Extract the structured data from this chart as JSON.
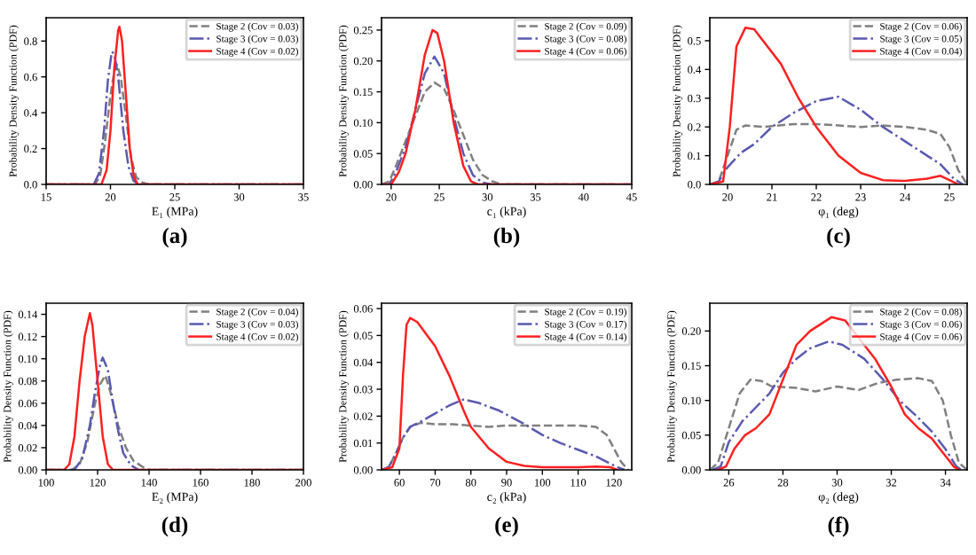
{
  "chart_data": [
    {
      "type": "line",
      "xlabel": "E₁ (MPa)",
      "ylabel": "Probability Density Function (PDF)",
      "annotations": [
        "(a)"
      ],
      "xlim": [
        15,
        35
      ],
      "xticks": [
        15,
        20,
        25,
        30,
        35
      ],
      "ylim": [
        0,
        0.93
      ],
      "yticks": [
        {
          "value": 0,
          "label": "0.0"
        },
        {
          "value": 0.2,
          "label": "0.2"
        },
        {
          "value": 0.4,
          "label": "0.4"
        },
        {
          "value": 0.6,
          "label": "0.6"
        },
        {
          "value": 0.8,
          "label": "0.8"
        }
      ],
      "legend": "top right",
      "grid": false,
      "series": [
        {
          "name": "Stage 2 (Cov = 0.03)",
          "color": "#808080",
          "line_style": "dashed",
          "x": [
            15,
            18.8,
            19.2,
            19.6,
            20.0,
            20.3,
            20.5,
            20.8,
            21.2,
            21.6,
            22.0,
            22.5,
            23,
            35
          ],
          "values": [
            0,
            0,
            0.05,
            0.25,
            0.5,
            0.63,
            0.67,
            0.6,
            0.38,
            0.15,
            0.04,
            0.01,
            0,
            0
          ]
        },
        {
          "name": "Stage 3 (Cov = 0.03)",
          "color": "#5a5ab0",
          "line_style": "dashdot",
          "x": [
            15,
            18.7,
            19.1,
            19.5,
            19.8,
            20.1,
            20.3,
            20.6,
            21.0,
            21.4,
            21.8,
            22.2,
            35
          ],
          "values": [
            0,
            0,
            0.06,
            0.3,
            0.58,
            0.74,
            0.73,
            0.6,
            0.3,
            0.1,
            0.02,
            0,
            0
          ]
        },
        {
          "name": "Stage 4 (Cov = 0.02)",
          "color": "#ff2020",
          "line_style": "solid",
          "x": [
            15,
            19.3,
            19.7,
            20.0,
            20.3,
            20.6,
            20.7,
            20.9,
            21.2,
            21.5,
            21.8,
            22.1,
            35
          ],
          "values": [
            0,
            0,
            0.08,
            0.3,
            0.65,
            0.86,
            0.88,
            0.8,
            0.5,
            0.2,
            0.05,
            0,
            0
          ]
        }
      ]
    },
    {
      "type": "line",
      "xlabel": "c₁ (kPa)",
      "ylabel": "Probability Density Function (PDF)",
      "annotations": [
        "(b)"
      ],
      "xlim": [
        19,
        45
      ],
      "xticks": [
        20,
        25,
        30,
        35,
        40,
        45
      ],
      "ylim": [
        0,
        0.27
      ],
      "yticks": [
        {
          "value": 0,
          "label": "0.00"
        },
        {
          "value": 0.05,
          "label": "0.05"
        },
        {
          "value": 0.1,
          "label": "0.10"
        },
        {
          "value": 0.15,
          "label": "0.15"
        },
        {
          "value": 0.2,
          "label": "0.20"
        },
        {
          "value": 0.25,
          "label": "0.25"
        }
      ],
      "legend": "top right",
      "grid": false,
      "series": [
        {
          "name": "Stage 2 (Cov = 0.09)",
          "color": "#808080",
          "line_style": "dashed",
          "x": [
            19,
            19.8,
            20.5,
            21.5,
            22.5,
            23.5,
            24.5,
            25.5,
            26.5,
            27.5,
            28.5,
            29.5,
            30.5,
            31.5,
            45
          ],
          "values": [
            0,
            0.005,
            0.03,
            0.07,
            0.11,
            0.15,
            0.165,
            0.155,
            0.12,
            0.08,
            0.04,
            0.015,
            0.005,
            0,
            0
          ]
        },
        {
          "name": "Stage 3 (Cov = 0.08)",
          "color": "#5a5ab0",
          "line_style": "dashdot",
          "x": [
            19,
            19.8,
            20.5,
            21.5,
            22.5,
            23.5,
            24.5,
            25.5,
            26.5,
            27.5,
            28.5,
            29.5,
            30.5,
            45
          ],
          "values": [
            0,
            0,
            0.02,
            0.06,
            0.12,
            0.18,
            0.207,
            0.18,
            0.11,
            0.05,
            0.015,
            0.003,
            0,
            0
          ]
        },
        {
          "name": "Stage 4 (Cov = 0.06)",
          "color": "#ff2020",
          "line_style": "solid",
          "x": [
            19,
            20,
            20.8,
            21.5,
            22.5,
            23.5,
            24.3,
            24.8,
            25.5,
            26.5,
            27.5,
            28.3,
            29,
            45
          ],
          "values": [
            0,
            0,
            0.02,
            0.05,
            0.12,
            0.21,
            0.25,
            0.245,
            0.2,
            0.1,
            0.03,
            0.005,
            0,
            0
          ]
        }
      ]
    },
    {
      "type": "line",
      "xlabel": "φ₁ (deg)",
      "ylabel": "Probability Density Function (PDF)",
      "annotations": [
        "(c)"
      ],
      "xlim": [
        19.6,
        25.4
      ],
      "xticks": [
        20,
        21,
        22,
        23,
        24,
        25
      ],
      "ylim": [
        0,
        0.58
      ],
      "yticks": [
        {
          "value": 0,
          "label": "0.0"
        },
        {
          "value": 0.1,
          "label": "0.1"
        },
        {
          "value": 0.2,
          "label": "0.2"
        },
        {
          "value": 0.3,
          "label": "0.3"
        },
        {
          "value": 0.4,
          "label": "0.4"
        },
        {
          "value": 0.5,
          "label": "0.5"
        }
      ],
      "legend": "top right",
      "grid": false,
      "series": [
        {
          "name": "Stage 2 (Cov = 0.06)",
          "color": "#808080",
          "line_style": "dashed",
          "x": [
            19.6,
            19.8,
            20.0,
            20.2,
            20.4,
            20.8,
            21.5,
            22.0,
            22.5,
            23.0,
            23.5,
            24.0,
            24.5,
            24.8,
            25.0,
            25.2,
            25.4
          ],
          "values": [
            0,
            0.01,
            0.1,
            0.19,
            0.205,
            0.2,
            0.21,
            0.21,
            0.205,
            0.2,
            0.205,
            0.2,
            0.19,
            0.175,
            0.13,
            0.05,
            0
          ]
        },
        {
          "name": "Stage 3 (Cov = 0.05)",
          "color": "#5a5ab0",
          "line_style": "dashdot",
          "x": [
            19.6,
            19.8,
            20.0,
            20.3,
            20.6,
            21.0,
            21.5,
            22.0,
            22.5,
            23.0,
            23.5,
            24.0,
            24.5,
            24.8,
            25.1,
            25.3
          ],
          "values": [
            0,
            0.01,
            0.06,
            0.11,
            0.14,
            0.2,
            0.25,
            0.29,
            0.305,
            0.26,
            0.2,
            0.15,
            0.1,
            0.07,
            0.02,
            0
          ]
        },
        {
          "name": "Stage 4 (Cov = 0.04)",
          "color": "#ff2020",
          "line_style": "solid",
          "x": [
            19.6,
            19.9,
            20.05,
            20.2,
            20.4,
            20.6,
            20.8,
            21.2,
            21.6,
            22.0,
            22.5,
            23.0,
            23.5,
            24.0,
            24.5,
            24.8,
            25.0,
            25.2
          ],
          "values": [
            0,
            0.01,
            0.2,
            0.48,
            0.545,
            0.54,
            0.5,
            0.42,
            0.3,
            0.2,
            0.1,
            0.04,
            0.015,
            0.012,
            0.02,
            0.03,
            0.015,
            0
          ]
        }
      ]
    },
    {
      "type": "line",
      "xlabel": "E₂ (MPa)",
      "ylabel": "Probability Density Function (PDF)",
      "annotations": [
        "(d)"
      ],
      "xlim": [
        100,
        200
      ],
      "xticks": [
        100,
        120,
        140,
        160,
        180,
        200
      ],
      "ylim": [
        0,
        0.15
      ],
      "yticks": [
        {
          "value": 0,
          "label": "0.00"
        },
        {
          "value": 0.02,
          "label": "0.02"
        },
        {
          "value": 0.04,
          "label": "0.04"
        },
        {
          "value": 0.06,
          "label": "0.06"
        },
        {
          "value": 0.08,
          "label": "0.08"
        },
        {
          "value": 0.1,
          "label": "0.10"
        },
        {
          "value": 0.12,
          "label": "0.12"
        },
        {
          "value": 0.14,
          "label": "0.14"
        }
      ],
      "legend": "top right",
      "grid": false,
      "series": [
        {
          "name": "Stage 2 (Cov = 0.04)",
          "color": "#808080",
          "line_style": "dashed",
          "x": [
            100,
            110,
            113,
            116,
            119,
            121,
            123,
            125,
            128,
            131,
            134,
            138,
            140,
            200
          ],
          "values": [
            0,
            0,
            0.005,
            0.025,
            0.06,
            0.077,
            0.085,
            0.07,
            0.04,
            0.02,
            0.008,
            0.002,
            0,
            0
          ]
        },
        {
          "name": "Stage 3 (Cov = 0.03)",
          "color": "#5a5ab0",
          "line_style": "dashdot",
          "x": [
            100,
            111,
            114,
            117,
            119,
            121,
            122,
            124,
            126,
            128,
            130,
            133,
            136,
            200
          ],
          "values": [
            0,
            0,
            0.01,
            0.04,
            0.07,
            0.095,
            0.101,
            0.09,
            0.06,
            0.035,
            0.015,
            0.004,
            0,
            0
          ]
        },
        {
          "name": "Stage 4 (Cov = 0.02)",
          "color": "#ff2020",
          "line_style": "solid",
          "x": [
            100,
            107,
            109,
            111,
            113,
            115,
            117,
            118,
            120,
            122,
            124,
            126,
            200
          ],
          "values": [
            0,
            0,
            0.005,
            0.03,
            0.08,
            0.12,
            0.141,
            0.13,
            0.08,
            0.03,
            0.005,
            0,
            0
          ]
        }
      ]
    },
    {
      "type": "line",
      "xlabel": "c₂ (kPa)",
      "ylabel": "Probability Density Function (PDF)",
      "annotations": [
        "(e)"
      ],
      "xlim": [
        55,
        125
      ],
      "xticks": [
        60,
        70,
        80,
        90,
        100,
        110,
        120
      ],
      "ylim": [
        0,
        0.062
      ],
      "yticks": [
        {
          "value": 0,
          "label": "0.00"
        },
        {
          "value": 0.01,
          "label": "0.01"
        },
        {
          "value": 0.02,
          "label": "0.02"
        },
        {
          "value": 0.03,
          "label": "0.03"
        },
        {
          "value": 0.04,
          "label": "0.04"
        },
        {
          "value": 0.05,
          "label": "0.05"
        },
        {
          "value": 0.06,
          "label": "0.06"
        }
      ],
      "legend": "top right",
      "grid": false,
      "series": [
        {
          "name": "Stage 2 (Cov = 0.19)",
          "color": "#808080",
          "line_style": "dashed",
          "x": [
            55,
            57,
            59,
            61,
            63,
            66,
            70,
            75,
            80,
            85,
            90,
            100,
            110,
            115,
            118,
            120,
            122,
            124
          ],
          "values": [
            0,
            0.001,
            0.006,
            0.012,
            0.016,
            0.0175,
            0.017,
            0.017,
            0.0165,
            0.016,
            0.0165,
            0.0165,
            0.0165,
            0.016,
            0.013,
            0.008,
            0.003,
            0
          ]
        },
        {
          "name": "Stage 3 (Cov = 0.17)",
          "color": "#5a5ab0",
          "line_style": "dashdot",
          "x": [
            55,
            57,
            59,
            61,
            63,
            66,
            70,
            74,
            78,
            82,
            88,
            95,
            100,
            105,
            110,
            115,
            118,
            121,
            123
          ],
          "values": [
            0,
            0.001,
            0.006,
            0.012,
            0.016,
            0.018,
            0.021,
            0.024,
            0.0262,
            0.025,
            0.022,
            0.017,
            0.013,
            0.01,
            0.0075,
            0.005,
            0.003,
            0.001,
            0
          ]
        },
        {
          "name": "Stage 4 (Cov = 0.14)",
          "color": "#ff2020",
          "line_style": "solid",
          "x": [
            55,
            58,
            60,
            61,
            62,
            63,
            65,
            70,
            74,
            78,
            80,
            85,
            90,
            95,
            100,
            110,
            115,
            119,
            121
          ],
          "values": [
            0,
            0.001,
            0.008,
            0.035,
            0.054,
            0.0565,
            0.055,
            0.046,
            0.035,
            0.022,
            0.016,
            0.008,
            0.003,
            0.0015,
            0.001,
            0.001,
            0.0012,
            0.001,
            0
          ]
        }
      ]
    },
    {
      "type": "line",
      "xlabel": "φ₂ (deg)",
      "ylabel": "Probability Density Function (PDF)",
      "annotations": [
        "(f)"
      ],
      "xlim": [
        25.3,
        34.8
      ],
      "xticks": [
        26,
        28,
        30,
        32,
        34
      ],
      "ylim": [
        0,
        0.24
      ],
      "yticks": [
        {
          "value": 0,
          "label": "0.00"
        },
        {
          "value": 0.05,
          "label": "0.05"
        },
        {
          "value": 0.1,
          "label": "0.10"
        },
        {
          "value": 0.15,
          "label": "0.15"
        },
        {
          "value": 0.2,
          "label": "0.20"
        }
      ],
      "legend": "top right",
      "grid": false,
      "series": [
        {
          "name": "Stage 2 (Cov = 0.08)",
          "color": "#808080",
          "line_style": "dashed",
          "x": [
            25.3,
            25.6,
            26.0,
            26.4,
            26.8,
            27.2,
            27.6,
            28.5,
            29.2,
            30.0,
            30.8,
            31.5,
            32.2,
            33.0,
            33.5,
            33.9,
            34.2,
            34.5,
            34.8
          ],
          "values": [
            0,
            0.01,
            0.06,
            0.11,
            0.13,
            0.128,
            0.12,
            0.118,
            0.113,
            0.12,
            0.115,
            0.125,
            0.13,
            0.132,
            0.128,
            0.1,
            0.05,
            0.01,
            0
          ]
        },
        {
          "name": "Stage 3 (Cov = 0.06)",
          "color": "#5a5ab0",
          "line_style": "dashdot",
          "x": [
            25.4,
            25.7,
            26.0,
            26.5,
            27.0,
            27.5,
            28.0,
            28.5,
            29.0,
            29.7,
            30.2,
            31.0,
            31.7,
            32.3,
            33.0,
            33.5,
            34.0,
            34.4,
            34.6
          ],
          "values": [
            0,
            0.005,
            0.04,
            0.07,
            0.09,
            0.11,
            0.14,
            0.16,
            0.175,
            0.185,
            0.18,
            0.16,
            0.13,
            0.1,
            0.075,
            0.055,
            0.03,
            0.005,
            0
          ]
        },
        {
          "name": "Stage 4 (Cov = 0.06)",
          "color": "#ff2020",
          "line_style": "solid",
          "x": [
            25.6,
            25.9,
            26.2,
            26.6,
            27.0,
            27.5,
            28.0,
            28.5,
            29.0,
            29.8,
            30.3,
            30.8,
            31.4,
            32.0,
            32.5,
            33.0,
            33.5,
            34.0,
            34.3,
            34.5
          ],
          "values": [
            0,
            0.005,
            0.03,
            0.05,
            0.06,
            0.08,
            0.13,
            0.18,
            0.2,
            0.22,
            0.215,
            0.19,
            0.16,
            0.12,
            0.08,
            0.06,
            0.045,
            0.02,
            0.005,
            0
          ]
        }
      ]
    }
  ]
}
